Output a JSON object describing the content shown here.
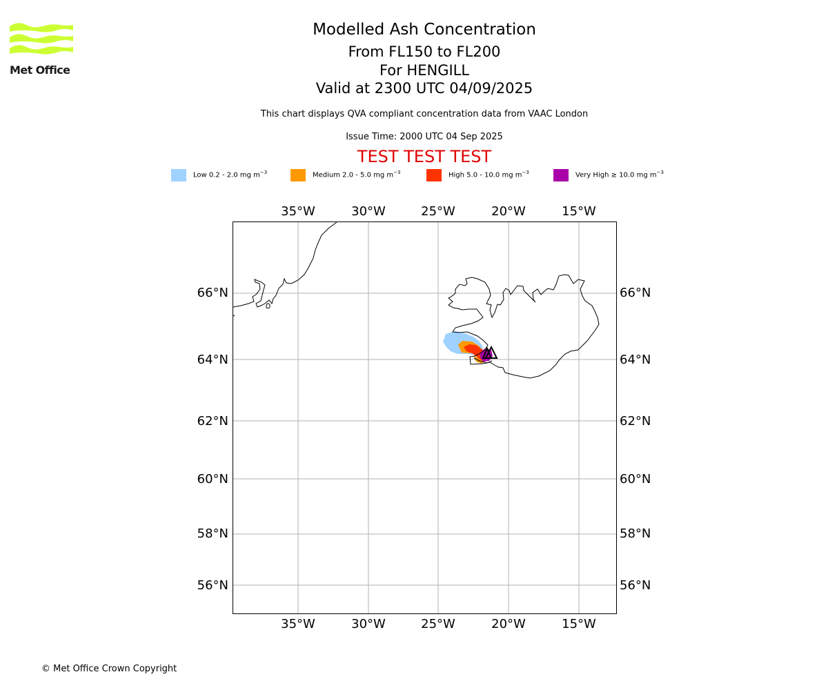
{
  "logo": {
    "text": "Met Office",
    "wave_color": "#ccff33"
  },
  "header": {
    "title": "Modelled Ash Concentration",
    "levels": "From FL150 to FL200",
    "volcano": "For HENGILL",
    "valid": "Valid at 2300 UTC 04/09/2025",
    "note": "This chart displays QVA compliant concentration data from VAAC London",
    "issue": "Issue Time: 2000 UTC 04 Sep 2025",
    "test": "TEST TEST TEST"
  },
  "legend": [
    {
      "label": "Low 0.2 - 2.0 mg m",
      "color": "#a0d2ff"
    },
    {
      "label": "Medium 2.0 - 5.0 mg m",
      "color": "#ff9900"
    },
    {
      "label": "High 5.0 - 10.0 mg m",
      "color": "#ff3300"
    },
    {
      "label": "Very High ≥ 10.0 mg m",
      "color": "#aa00aa"
    }
  ],
  "legend_unit_exponent": "−3",
  "map": {
    "lon_ticks": [
      "35°W",
      "30°W",
      "25°W",
      "20°W",
      "15°W"
    ],
    "lat_ticks": [
      "66°N",
      "64°N",
      "62°N",
      "60°N",
      "58°N",
      "56°N"
    ],
    "lon_range": [
      -39.7,
      -12.4
    ],
    "lat_range": [
      55,
      69.5
    ],
    "grid": true
  },
  "footer": {
    "copyright": "© Met Office Crown Copyright"
  }
}
